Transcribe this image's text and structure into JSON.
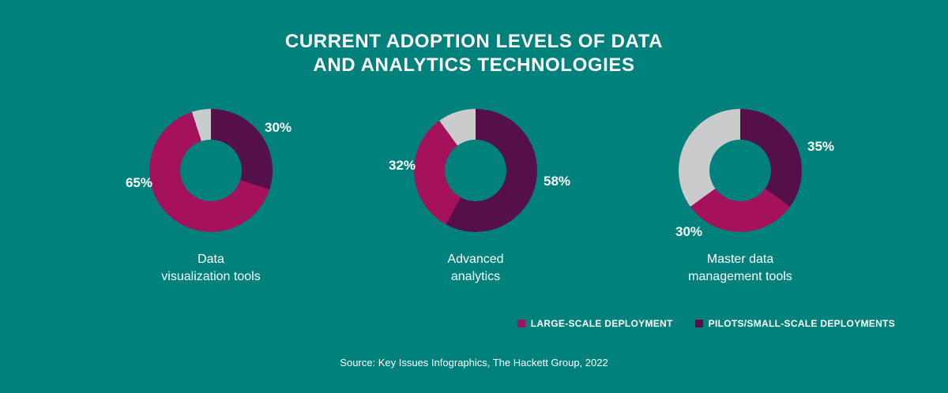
{
  "page": {
    "background": "#00817C",
    "title_line1": "CURRENT ADOPTION LEVELS OF DATA",
    "title_line2": "AND ANALYTICS TECHNOLOGIES",
    "source": "Source: Key Issues Infographics, The Hackett Group, 2022"
  },
  "legend": {
    "items": [
      {
        "label": "LARGE-SCALE DEPLOYMENT",
        "color": "#A3125B"
      },
      {
        "label": "PILOTS/SMALL-SCALE DEPLOYMENTS",
        "color": "#55104A"
      }
    ]
  },
  "chart_data": {
    "type": "pie",
    "subtype": "donut",
    "title": "Current adoption levels of data and analytics technologies",
    "legend_position": "bottom-right",
    "colors": {
      "large_scale": "#A3125B",
      "pilots": "#55104A",
      "remainder": "#C9CBCC",
      "hole": "#00817C"
    },
    "series_names": [
      "Large-scale deployment",
      "Pilots/small-scale deployments",
      "Remainder (unlabeled)"
    ],
    "charts": [
      {
        "caption_line1": "Data",
        "caption_line2": "visualization tools",
        "large_scale_pct": 65,
        "pilots_pct": 30,
        "remainder_pct": 5,
        "large_scale_label": "65%",
        "pilots_label": "30%"
      },
      {
        "caption_line1": "Advanced",
        "caption_line2": "analytics",
        "large_scale_pct": 32,
        "pilots_pct": 58,
        "remainder_pct": 10,
        "large_scale_label": "32%",
        "pilots_label": "58%"
      },
      {
        "caption_line1": "Master data",
        "caption_line2": "management tools",
        "large_scale_pct": 30,
        "pilots_pct": 35,
        "remainder_pct": 35,
        "large_scale_label": "30%",
        "pilots_label": "35%"
      }
    ]
  }
}
